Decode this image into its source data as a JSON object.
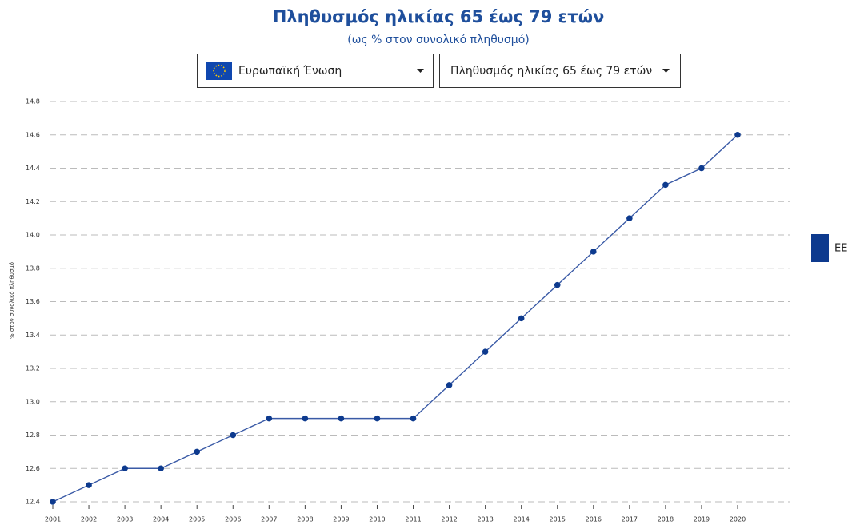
{
  "controls": [
    {
      "label": "Ευρωπαϊκή Ένωση"
    },
    {
      "label": "Πληθυσμός ηλικίας 65 έως 79 ετών"
    }
  ],
  "chart_data": {
    "type": "line",
    "title": "Πληθυσμός ηλικίας 65 έως 79 ετών",
    "subtitle": "(ως % στον συνολικό πληθυσμό)",
    "y_label": "% στον συνολικό πληθυσμό",
    "categories": [
      "2001",
      "2002",
      "2003",
      "2004",
      "2005",
      "2006",
      "2007",
      "2008",
      "2009",
      "2010",
      "2011",
      "2012",
      "2013",
      "2014",
      "2015",
      "2016",
      "2017",
      "2018",
      "2019",
      "2020"
    ],
    "series": [
      {
        "name": "EE",
        "color": "#0d3a8e",
        "values": [
          12.4,
          12.5,
          12.6,
          12.6,
          12.7,
          12.8,
          12.9,
          12.9,
          12.9,
          12.9,
          12.9,
          13.1,
          13.3,
          13.5,
          13.7,
          13.9,
          14.1,
          14.3,
          14.4,
          14.6
        ]
      }
    ],
    "ylim": [
      12.4,
      14.8
    ],
    "yticks": [
      12.4,
      12.6,
      12.8,
      {
        "value": 13,
        "label": "13.0"
      },
      13.2,
      13.4,
      13.6,
      13.8,
      {
        "value": 14,
        "label": "14.0"
      },
      14.2,
      14.4,
      14.6,
      14.8
    ],
    "grid": true,
    "legend": "right"
  }
}
